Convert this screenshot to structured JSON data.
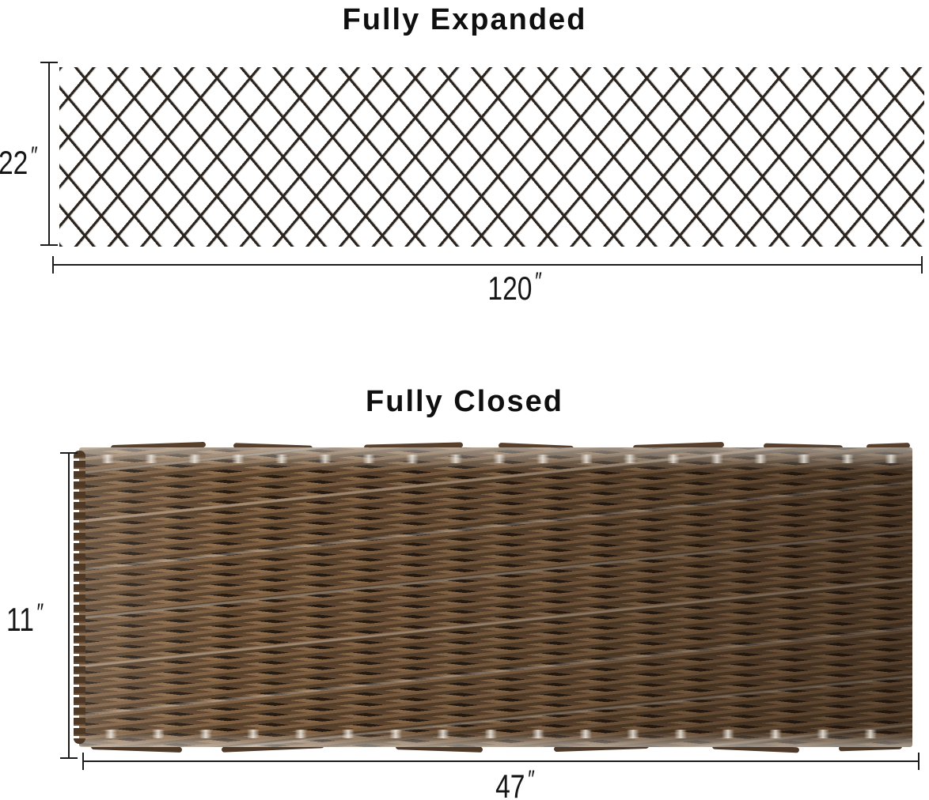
{
  "expanded": {
    "title": "Fully Expanded",
    "height_value": "22",
    "width_value": "120",
    "unit_mark": "″"
  },
  "closed": {
    "title": "Fully Closed",
    "height_value": "11",
    "width_value": "47",
    "unit_mark": "″"
  },
  "colors": {
    "background": "#ffffff",
    "lattice_line": "#2b241e",
    "willow_brown_light": "#8a6a4a",
    "willow_brown_mid": "#6e523a",
    "willow_brown_dark": "#3a2a1c",
    "dimension_line": "#1c1c1c",
    "text": "#111111"
  }
}
